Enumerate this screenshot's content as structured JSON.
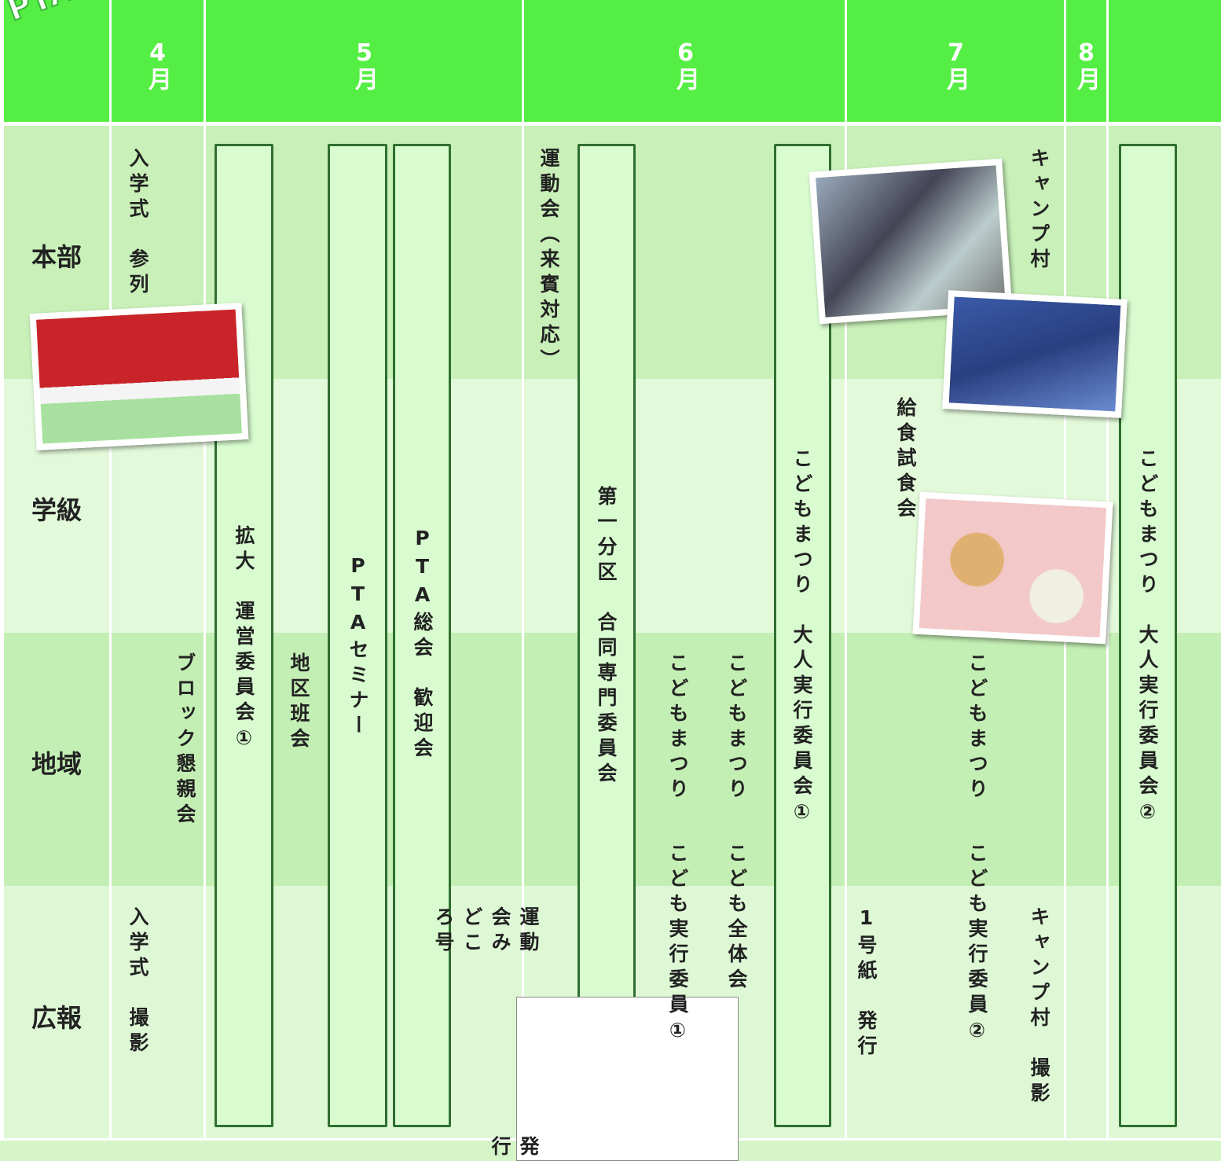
{
  "header": {
    "title": "PTA活動報告"
  },
  "months": [
    "4月",
    "5月",
    "6月",
    "7月",
    "8月"
  ],
  "rows": [
    "本部",
    "学級",
    "地域",
    "広報"
  ],
  "events": [
    {
      "lines": [
        "入学式　参列"
      ]
    },
    {
      "lines": [
        "ブロック懇親会"
      ]
    },
    {
      "lines": [
        "拡大　運営委員会①"
      ]
    },
    {
      "lines": [
        "地区班会"
      ]
    },
    {
      "lines": [
        "PTAセミナー"
      ]
    },
    {
      "lines": [
        "PTA総会　歓迎会"
      ]
    },
    {
      "lines": [
        "運動会（来賓対応）"
      ]
    },
    {
      "lines": [
        "第一分区　合同専門委員会"
      ]
    },
    {
      "lines": [
        "こどもまつり",
        "こども実行委員①"
      ]
    },
    {
      "lines": [
        "こどもまつり",
        "こども全体会"
      ]
    },
    {
      "lines": [
        "こどもまつり　大人実行委員会①"
      ]
    },
    {
      "lines": [
        "キャンプ村"
      ]
    },
    {
      "lines": [
        "給食試食会"
      ]
    },
    {
      "lines": [
        "こどもまつり",
        "こども実行委員②"
      ]
    },
    {
      "lines": [
        "こどもまつり　大人実行委員会②"
      ]
    },
    {
      "lines": [
        "入学式　撮影"
      ]
    },
    {
      "lines": [
        "運動会みどころ号",
        "発行"
      ]
    },
    {
      "lines": [
        "1号紙　発行"
      ]
    },
    {
      "lines": [
        "キャンプ村　撮影"
      ]
    }
  ]
}
